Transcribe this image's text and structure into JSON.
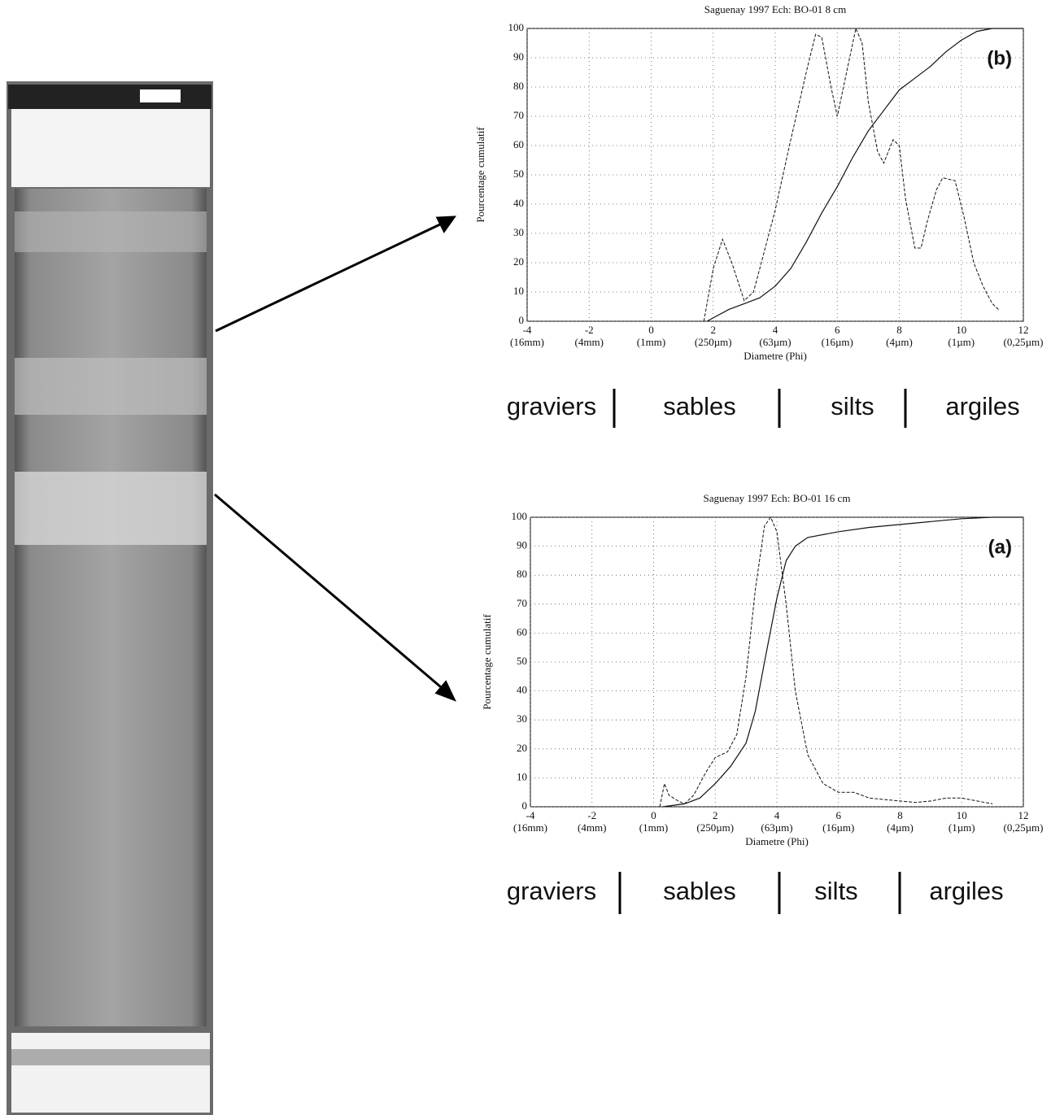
{
  "chart_data": [
    {
      "type": "line",
      "title": "Saguenay 1997   Ech: BO-01   8 cm",
      "annotation": "(b)",
      "xlabel": "Diametre (Phi)",
      "ylabel": "Pourcentage cumulatif",
      "xlim": [
        -4,
        12
      ],
      "xticks": [
        -4,
        -2,
        0,
        2,
        4,
        6,
        8,
        10,
        12
      ],
      "xtick_units": [
        "(16mm)",
        "(4mm)",
        "(1mm)",
        "(250µm)",
        "(63µm)",
        "(16µm)",
        "(4µm)",
        "(1µm)",
        "(0,25µm)"
      ],
      "ylim": [
        0,
        100
      ],
      "yticks": [
        0,
        10,
        20,
        30,
        40,
        50,
        60,
        70,
        80,
        90,
        100
      ],
      "grid": true,
      "classes": [
        "graviers",
        "sables",
        "silts",
        "argiles"
      ],
      "series": [
        {
          "color": "#111",
          "style": "solid",
          "x": [
            1.8,
            2.5,
            3,
            3.5,
            4,
            4.5,
            5,
            5.5,
            6,
            6.5,
            7,
            7.5,
            8,
            8.5,
            9,
            9.5,
            10,
            10.5,
            11,
            11.5,
            12
          ],
          "values": [
            0,
            4,
            6,
            8,
            12,
            18,
            27,
            37,
            46,
            56,
            65,
            72,
            79,
            83,
            87,
            92,
            96,
            99,
            100,
            100,
            100
          ]
        },
        {
          "color": "#111",
          "style": "dashed",
          "x": [
            1.7,
            2,
            2.3,
            2.6,
            3,
            3.3,
            3.6,
            4,
            4.5,
            5,
            5.3,
            5.5,
            5.8,
            6,
            6.3,
            6.6,
            6.8,
            7,
            7.3,
            7.5,
            7.8,
            8,
            8.2,
            8.5,
            8.7,
            8.9,
            9.2,
            9.4,
            9.8,
            10.1,
            10.4,
            10.7,
            11,
            11.2
          ],
          "values": [
            0,
            18,
            28,
            20,
            7,
            10,
            22,
            38,
            62,
            85,
            98,
            97,
            80,
            70,
            85,
            100,
            95,
            75,
            58,
            54,
            62,
            60,
            42,
            25,
            25,
            34,
            45,
            49,
            48,
            35,
            20,
            12,
            6,
            4
          ]
        }
      ]
    },
    {
      "type": "line",
      "title": "Saguenay 1997   Ech: BO-01   16 cm",
      "annotation": "(a)",
      "xlabel": "Diametre (Phi)",
      "ylabel": "Pourcentage cumulatif",
      "xlim": [
        -4,
        12
      ],
      "xticks": [
        -4,
        -2,
        0,
        2,
        4,
        6,
        8,
        10,
        12
      ],
      "xtick_units": [
        "(16mm)",
        "(4mm)",
        "(1mm)",
        "(250µm)",
        "(63µm)",
        "(16µm)",
        "(4µm)",
        "(1µm)",
        "(0,25µm)"
      ],
      "ylim": [
        0,
        100
      ],
      "yticks": [
        0,
        10,
        20,
        30,
        40,
        50,
        60,
        70,
        80,
        90,
        100
      ],
      "grid": true,
      "classes": [
        "graviers",
        "sables",
        "silts",
        "argiles"
      ],
      "series": [
        {
          "color": "#111",
          "style": "solid",
          "x": [
            0.3,
            1,
            1.5,
            2,
            2.5,
            3,
            3.3,
            3.6,
            4,
            4.3,
            4.6,
            5,
            6,
            7,
            8,
            9,
            10,
            11,
            12
          ],
          "values": [
            0,
            1,
            3,
            8,
            14,
            22,
            33,
            50,
            72,
            85,
            90,
            93,
            95,
            96.5,
            97.5,
            98.5,
            99.5,
            100,
            100
          ]
        },
        {
          "color": "#111",
          "style": "dashed",
          "x": [
            0.2,
            0.35,
            0.5,
            0.8,
            1,
            1.3,
            1.7,
            2,
            2.4,
            2.7,
            3,
            3.3,
            3.6,
            3.8,
            4,
            4.3,
            4.6,
            5,
            5.5,
            6,
            6.5,
            7,
            8,
            8.5,
            9,
            9.5,
            10,
            10.5,
            11
          ],
          "values": [
            0,
            8,
            4,
            2,
            1,
            4,
            12,
            17,
            19,
            25,
            45,
            75,
            97,
            100,
            95,
            70,
            40,
            18,
            8,
            5,
            5,
            3,
            2,
            1.5,
            2,
            3,
            3,
            2,
            1
          ]
        }
      ]
    }
  ]
}
